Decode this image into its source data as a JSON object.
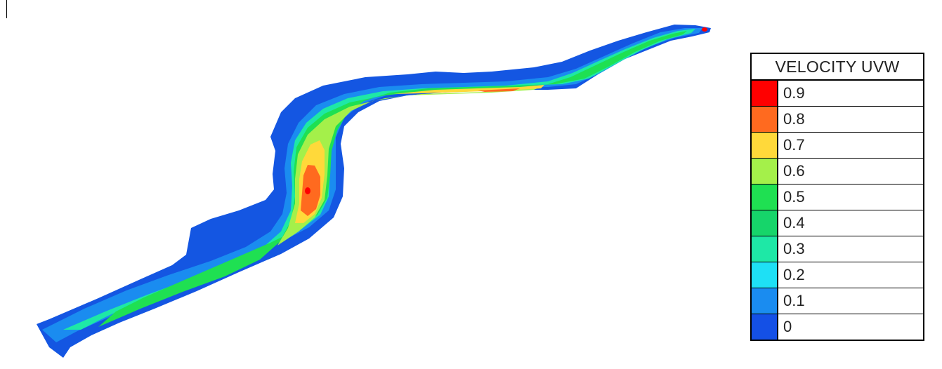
{
  "legend": {
    "title": "VELOCITY UVW",
    "entries": [
      {
        "label": "0.9",
        "color": "#ff0000"
      },
      {
        "label": "0.8",
        "color": "#ff6a1f"
      },
      {
        "label": "0.7",
        "color": "#ffd93a"
      },
      {
        "label": "0.6",
        "color": "#a4f04a"
      },
      {
        "label": "0.5",
        "color": "#1fe052"
      },
      {
        "label": "0.4",
        "color": "#16d56a"
      },
      {
        "label": "0.3",
        "color": "#1ee8a6"
      },
      {
        "label": "0.2",
        "color": "#1ee0f5"
      },
      {
        "label": "0.1",
        "color": "#1a8cf0"
      },
      {
        "label": "0",
        "color": "#1450e6"
      }
    ]
  },
  "colors": {
    "bank": "#1456e2",
    "shallow": "#1a8cf0",
    "mid": "#1ee8a6",
    "fast": "#1fe052",
    "faster": "#a4f04a",
    "yellow": "#ffd93a",
    "orange": "#ff6a1f",
    "red": "#ff0000"
  }
}
